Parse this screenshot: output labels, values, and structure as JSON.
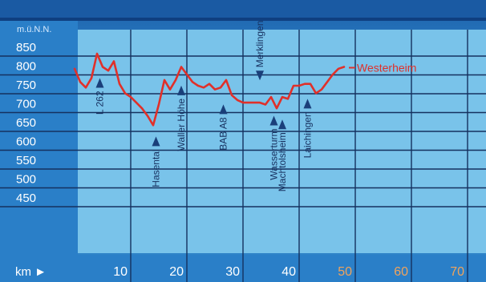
{
  "chart_data": {
    "type": "line",
    "ylabel": "m.ü.N.N.",
    "xlabel": "km ►",
    "y_ticks": [
      "850",
      "800",
      "750",
      "700",
      "650",
      "600",
      "550",
      "500",
      "450"
    ],
    "y_tick_values": [
      850,
      800,
      750,
      700,
      650,
      600,
      550,
      500,
      450
    ],
    "x_ticks": [
      "10",
      "20",
      "30",
      "40",
      "50",
      "60",
      "70"
    ],
    "x_tick_values": [
      10,
      20,
      30,
      40,
      50,
      60,
      70
    ],
    "x_tick_highlight": [
      false,
      false,
      false,
      false,
      true,
      true,
      true
    ],
    "xlim": [
      0,
      73
    ],
    "ylim": [
      430,
      880
    ],
    "grid": true,
    "colors": {
      "line": "#e0302a",
      "marker": "#1a3f7a",
      "tick_dim": "#f0a35c",
      "text": "#ffffff",
      "navy": "#17305f"
    },
    "series": [
      {
        "x": [
          0,
          1,
          2,
          3,
          4,
          5,
          6,
          7,
          8,
          9,
          10,
          11,
          12,
          13,
          14,
          15,
          16,
          17,
          18,
          19,
          20,
          21,
          22,
          23,
          24,
          25,
          26,
          27,
          28,
          29,
          30,
          31,
          32,
          33,
          34,
          35,
          36,
          37,
          38,
          39,
          40,
          41,
          42,
          43,
          44,
          45,
          46,
          47,
          48
        ],
        "values": [
          795,
          760,
          745,
          770,
          835,
          800,
          790,
          815,
          755,
          730,
          720,
          705,
          690,
          670,
          645,
          700,
          765,
          740,
          765,
          800,
          780,
          760,
          750,
          745,
          755,
          740,
          745,
          765,
          725,
          712,
          705,
          705,
          705,
          705,
          700,
          720,
          690,
          720,
          715,
          750,
          750,
          755,
          755,
          730,
          740,
          760,
          780,
          795,
          800
        ]
      }
    ],
    "places": [
      {
        "name": "L 262",
        "x": 4.5,
        "y": 800,
        "label_pos": "below",
        "orient": "vertical"
      },
      {
        "name": "Hasental",
        "x": 14.5,
        "y": 645,
        "label_pos": "below",
        "orient": "vertical"
      },
      {
        "name": "Waller Höhe",
        "x": 19,
        "y": 780,
        "label_pos": "below",
        "orient": "vertical"
      },
      {
        "name": "BAB A8",
        "x": 26.5,
        "y": 730,
        "label_pos": "below",
        "orient": "vertical"
      },
      {
        "name": "Merklingen",
        "x": 33,
        "y": 760,
        "label_pos": "above",
        "orient": "vertical"
      },
      {
        "name": "Wasserturm",
        "x": 35.5,
        "y": 700,
        "label_pos": "below",
        "orient": "vertical"
      },
      {
        "name": "Machtolsheim",
        "x": 37,
        "y": 690,
        "label_pos": "below",
        "orient": "vertical"
      },
      {
        "name": "Laichingen",
        "x": 41.5,
        "y": 745,
        "label_pos": "below",
        "orient": "vertical"
      },
      {
        "name": "Westerheim",
        "x": 48,
        "y": 800,
        "label_pos": "right",
        "orient": "horizontal"
      }
    ]
  }
}
